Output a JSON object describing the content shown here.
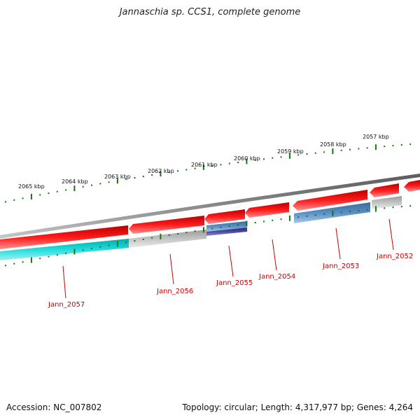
{
  "title": "Jannaschia sp. CCS1, complete genome",
  "footer": {
    "accession": "Accession: NC_007802",
    "summary": "Topology: circular; Length: 4,317,977 bp; Genes: 4,264"
  },
  "colors": {
    "backbone": "#7a7a7a",
    "forward_gene": "#ee1111",
    "forward_gene_light": "#ff8080",
    "cyan_gene": "#11cccc",
    "grey_gene": "#b0b0b0",
    "steelblue_gene": "#4a7fb5",
    "navy_gene": "#3a3a8a",
    "tick": "#117711",
    "gene_label": "#cc0000"
  },
  "ruler": {
    "labels": [
      "2065 kbp",
      "2064 kbp",
      "2063 kbp",
      "2062 kbp",
      "2061 kbp",
      "2060 kbp",
      "2059 kbp",
      "2058 kbp",
      "2057 kbp"
    ]
  },
  "genes": [
    {
      "name": "Jann_2057"
    },
    {
      "name": "Jann_2056"
    },
    {
      "name": "Jann_2055"
    },
    {
      "name": "Jann_2054"
    },
    {
      "name": "Jann_2053"
    },
    {
      "name": "Jann_2052"
    }
  ]
}
